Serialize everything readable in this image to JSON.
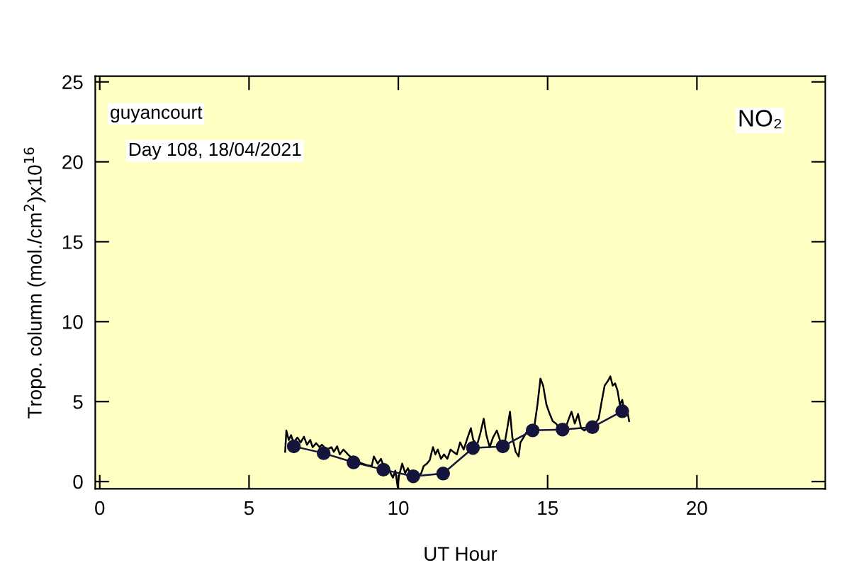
{
  "chart_data": {
    "type": "line",
    "xlabel": "UT Hour",
    "ylabel": "Tropo. column (mol./cm$^{2}$)x10$^{16}$",
    "annotations": [
      "guyancourt",
      "Day 108, 18/04/2021",
      "NO₂"
    ],
    "xlim": [
      -0.15,
      24.3
    ],
    "xticks": [
      0,
      5,
      10,
      15,
      20
    ],
    "ylim": [
      -0.45,
      25.35
    ],
    "yticks": [
      0,
      5,
      10,
      15,
      20,
      25
    ],
    "grid": false,
    "legend": false,
    "series": [
      {
        "color": "#000000",
        "marker": "none",
        "x": [
          6.21,
          6.25,
          6.33,
          6.41,
          6.49,
          6.62,
          6.73,
          6.84,
          6.94,
          7.05,
          7.13,
          7.25,
          7.36,
          7.44,
          7.6,
          7.76,
          7.84,
          7.95,
          8.04,
          8.16,
          8.31,
          8.47,
          8.63,
          8.79,
          8.95,
          9.11,
          9.18,
          9.31,
          9.42,
          9.53,
          9.66,
          9.74,
          9.82,
          9.9,
          9.98,
          10.02,
          10.13,
          10.23,
          10.32,
          10.45,
          10.61,
          10.77,
          10.85,
          10.96,
          11.05,
          11.16,
          11.24,
          11.32,
          11.43,
          11.53,
          11.64,
          11.75,
          11.84,
          11.96,
          12.07,
          12.19,
          12.32,
          12.43,
          12.51,
          12.64,
          12.75,
          12.86,
          12.95,
          13.06,
          13.17,
          13.3,
          13.43,
          13.54,
          13.65,
          13.74,
          13.82,
          13.93,
          14.03,
          14.09,
          14.19,
          14.28,
          14.38,
          14.49,
          14.57,
          14.66,
          14.76,
          14.85,
          14.96,
          15.07,
          15.17,
          15.28,
          15.39,
          15.49,
          15.6,
          15.71,
          15.8,
          15.91,
          16.02,
          16.12,
          16.23,
          16.34,
          16.47,
          16.59,
          16.71,
          16.82,
          16.91,
          17.02,
          17.1,
          17.18,
          17.26,
          17.34,
          17.42,
          17.5,
          17.58,
          17.66,
          17.73
        ],
        "values": [
          1.86,
          3.19,
          2.6,
          2.9,
          2.45,
          2.75,
          2.45,
          2.8,
          2.3,
          2.6,
          2.15,
          2.4,
          2.15,
          2.3,
          2.0,
          2.15,
          1.86,
          2.2,
          1.7,
          2.0,
          1.7,
          1.42,
          1.27,
          1.12,
          1.03,
          0.97,
          1.57,
          1.12,
          1.42,
          0.83,
          0.97,
          0.53,
          0.24,
          0.68,
          -0.35,
          0.33,
          1.12,
          0.53,
          0.83,
          0.33,
          0.15,
          0.53,
          0.97,
          1.12,
          1.33,
          2.15,
          1.7,
          2.0,
          1.42,
          1.7,
          1.42,
          2.0,
          1.86,
          1.7,
          2.45,
          2.0,
          2.75,
          3.34,
          2.6,
          2.3,
          3.04,
          3.93,
          2.9,
          2.15,
          2.75,
          3.19,
          2.45,
          2.15,
          3.34,
          4.37,
          2.75,
          1.86,
          1.57,
          2.45,
          2.75,
          3.04,
          3.34,
          2.9,
          3.63,
          4.81,
          6.44,
          6.0,
          4.81,
          4.23,
          3.78,
          3.63,
          3.34,
          2.9,
          3.34,
          3.93,
          4.37,
          3.63,
          4.23,
          3.34,
          3.19,
          3.34,
          3.48,
          3.63,
          3.93,
          5.11,
          6.0,
          6.29,
          6.58,
          6.0,
          6.14,
          5.7,
          4.81,
          5.11,
          4.23,
          4.52,
          3.78
        ]
      },
      {
        "color": "#14143c",
        "marker": "circle",
        "x": [
          6.5,
          7.5,
          8.5,
          9.5,
          10.5,
          11.5,
          12.5,
          13.5,
          14.5,
          15.5,
          16.5,
          17.5
        ],
        "values": [
          2.2,
          1.77,
          1.2,
          0.74,
          0.33,
          0.5,
          2.1,
          2.2,
          3.2,
          3.25,
          3.4,
          4.4
        ]
      }
    ]
  }
}
